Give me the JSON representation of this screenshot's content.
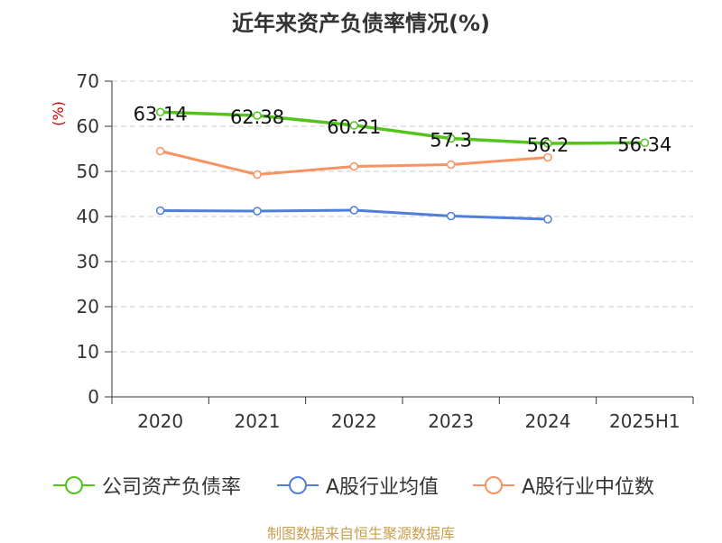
{
  "title": "近年来资产负债率情况(%)",
  "source": "制图数据来自恒生聚源数据库",
  "colors": {
    "company": "#52c41a",
    "industry_avg": "#4f7fdb",
    "industry_median": "#f79263",
    "axis": "#333333",
    "grid": "#cccccc",
    "unit": "#cc0000"
  },
  "chart_data": {
    "type": "line",
    "title": "近年来资产负债率情况(%)",
    "ylabel": "(%)",
    "xlabel": "",
    "categories": [
      "2020",
      "2021",
      "2022",
      "2023",
      "2024",
      "2025H1"
    ],
    "ylim": [
      0,
      70
    ],
    "yticks": [
      0,
      10,
      20,
      30,
      40,
      50,
      60,
      70
    ],
    "grid": true,
    "legend_position": "bottom",
    "series": [
      {
        "name": "公司资产负债率",
        "color": "#52c41a",
        "values": [
          63.14,
          62.38,
          60.21,
          57.3,
          56.2,
          56.34
        ],
        "data_labels": [
          "63.14",
          "62.38",
          "60.21",
          "57.3",
          "56.2",
          "56.34"
        ]
      },
      {
        "name": "A股行业均值",
        "color": "#4f7fdb",
        "values": [
          41.3,
          41.2,
          41.4,
          40.1,
          39.4,
          null
        ]
      },
      {
        "name": "A股行业中位数",
        "color": "#f79263",
        "values": [
          54.5,
          49.3,
          51.1,
          51.5,
          53.1,
          null
        ]
      }
    ]
  }
}
